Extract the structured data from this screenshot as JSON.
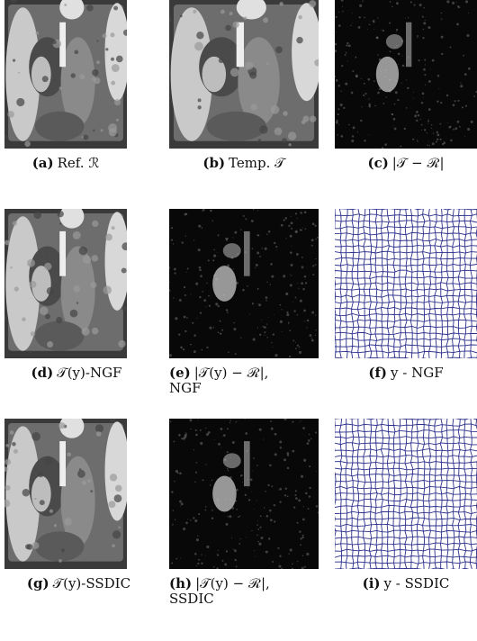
{
  "panels": [
    {
      "label": "(a)",
      "caption": "Ref. ℛ"
    },
    {
      "label": "(b)",
      "caption": "Temp. 𝒯"
    },
    {
      "label": "(c)",
      "caption": "|𝒯 − ℛ|"
    },
    {
      "label": "(d)",
      "caption": "𝒯(y)-NGF"
    },
    {
      "label": "(e)",
      "caption": "|𝒯(y) − ℛ|, NGF"
    },
    {
      "label": "(f)",
      "caption": "y - NGF"
    },
    {
      "label": "(g)",
      "caption": "𝒯(y)-SSDIC"
    },
    {
      "label": "(h)",
      "caption": "|𝒯(y) − ℛ|, SSDIC"
    },
    {
      "label": "(i)",
      "caption": "y - SSDIC"
    }
  ]
}
